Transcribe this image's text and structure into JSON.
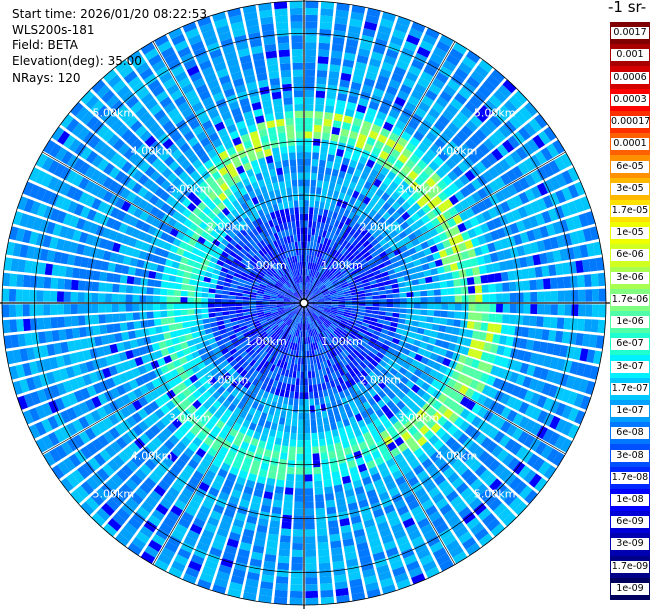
{
  "header": {
    "start_time": "Start time: 2026/01/20 08:22:53",
    "instrument": "WLS200s-181",
    "field": "Field: BETA",
    "elevation": "Elevation(deg): 35.00",
    "nrays": "NRays: 120"
  },
  "colorbar": {
    "title": "-1 sr-",
    "labels": [
      "0.0017",
      "0.001",
      "0.0006",
      "0.0003",
      "0.00017",
      "0.0001",
      "6e-05",
      "3e-05",
      "1.7e-05",
      "1e-05",
      "6e-06",
      "3e-06",
      "1.7e-06",
      "1e-06",
      "6e-07",
      "3e-07",
      "1.7e-07",
      "1e-07",
      "6e-08",
      "3e-08",
      "1.7e-08",
      "1e-08",
      "6e-09",
      "3e-09",
      "1.7e-09",
      "1e-09"
    ],
    "colors": [
      "#800000",
      "#a80000",
      "#d40000",
      "#ff0000",
      "#ff3000",
      "#ff6000",
      "#ff9000",
      "#ffb800",
      "#ffe000",
      "#f0ff00",
      "#d0ff20",
      "#a8ff50",
      "#80ff80",
      "#50ffa8",
      "#20ffd0",
      "#00f0ff",
      "#00c8ff",
      "#00a0ff",
      "#0078ff",
      "#0050ff",
      "#0028ff",
      "#0000ff",
      "#0000d8",
      "#0000b0",
      "#000088",
      "#000060"
    ]
  },
  "chart_data": {
    "type": "heatmap",
    "projection": "polar-ppi",
    "nrays": 120,
    "range_km": [
      0,
      5.6
    ],
    "range_ring_labels": [
      "1.00km",
      "2.00km",
      "3.00km",
      "4.00km",
      "5.00km"
    ],
    "range_rings_km": [
      1,
      2,
      3,
      4,
      5
    ],
    "grid": true,
    "field": "BETA",
    "color_scale": "log",
    "value_range": [
      1e-09,
      0.0017
    ],
    "features": [
      {
        "name": "near-field low backscatter",
        "range_km": [
          0,
          1.8
        ],
        "level": 1e-08
      },
      {
        "name": "enhanced backscatter band",
        "range_km": [
          2.3,
          3.6
        ],
        "level": 1.7e-06
      },
      {
        "name": "background",
        "range_km": [
          1.8,
          5.6
        ],
        "level": 6e-08
      }
    ]
  }
}
